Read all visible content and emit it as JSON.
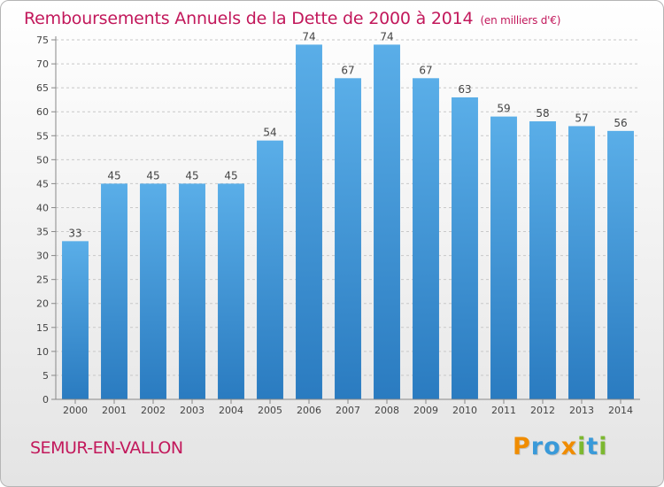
{
  "header": {
    "title": "Remboursements Annuels de la Dette de 2000 à 2014",
    "unit": "(en milliers d'€)"
  },
  "footer": {
    "place": "SEMUR-EN-VALLON",
    "logo": "Proxiti",
    "logo_letters": [
      {
        "ch": "P",
        "color": "#f08c00"
      },
      {
        "ch": "r",
        "color": "#3a9ad9"
      },
      {
        "ch": "o",
        "color": "#3a9ad9"
      },
      {
        "ch": "x",
        "color": "#f08c00"
      },
      {
        "ch": "i",
        "color": "#7cb82f"
      },
      {
        "ch": "t",
        "color": "#3a9ad9"
      },
      {
        "ch": "i",
        "color": "#7cb82f"
      }
    ]
  },
  "chart_data": {
    "type": "bar",
    "title": "Remboursements Annuels de la Dette de 2000 à 2014",
    "subtitle": "(en milliers d'€)",
    "categories": [
      "2000",
      "2001",
      "2002",
      "2003",
      "2004",
      "2005",
      "2006",
      "2007",
      "2008",
      "2009",
      "2010",
      "2011",
      "2012",
      "2013",
      "2014"
    ],
    "values": [
      33,
      45,
      45,
      45,
      45,
      54,
      74,
      67,
      74,
      67,
      63,
      59,
      58,
      57,
      56
    ],
    "ylim": [
      0,
      75
    ],
    "yticks": [
      0,
      5,
      10,
      15,
      20,
      25,
      30,
      35,
      40,
      45,
      50,
      55,
      60,
      65,
      70,
      75
    ],
    "grid": true,
    "bar_color_top": "#5aaee8",
    "bar_color_bottom": "#2a7bc0"
  }
}
